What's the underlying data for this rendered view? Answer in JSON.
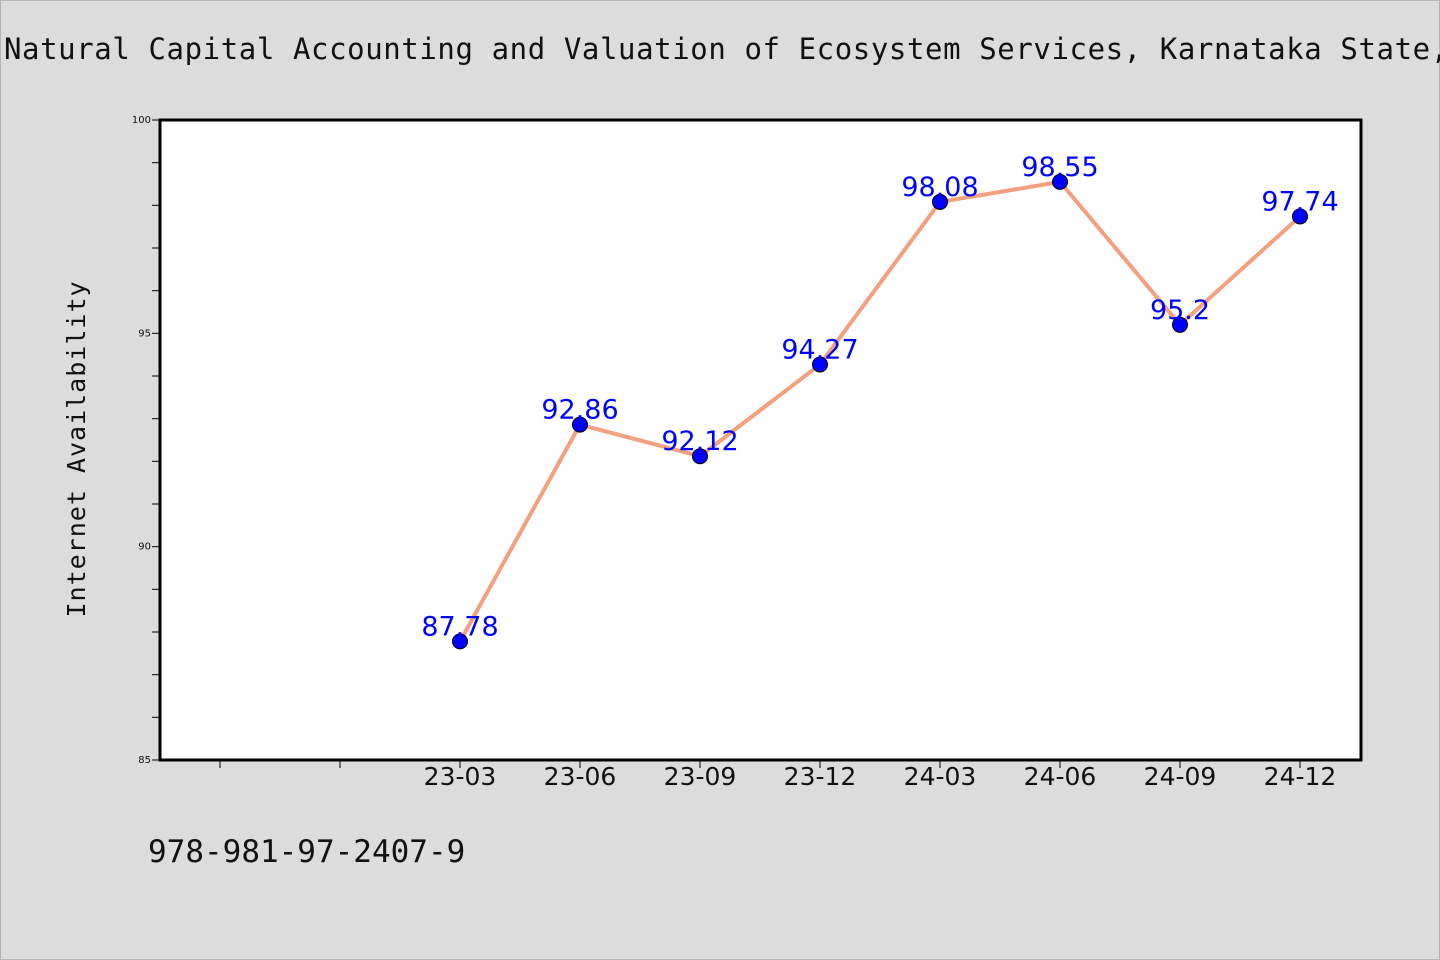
{
  "chart_data": {
    "type": "line",
    "title": "Natural Capital Accounting and Valuation of Ecosystem Services, Karnataka State,",
    "ylabel": "Internet Availability",
    "xlabel": "",
    "categories": [
      "23-03",
      "23-06",
      "23-09",
      "23-12",
      "24-03",
      "24-06",
      "24-09",
      "24-12"
    ],
    "series": [
      {
        "values": [
          87.78,
          92.86,
          92.12,
          94.27,
          98.08,
          98.55,
          95.2,
          97.74
        ],
        "data_labels": [
          "87.78",
          "92.86",
          "92.12",
          "94.27",
          "98.08",
          "98.55",
          "95.2",
          "97.74"
        ]
      }
    ],
    "ylim": [
      85,
      100
    ],
    "y_ticks": [
      "85",
      "90",
      "95",
      "100"
    ],
    "grid": false,
    "line_color": "#f4a07f",
    "marker_color": "#0000ff",
    "label_color": "#0000ff"
  },
  "footer_note": "978-981-97-2407-9"
}
